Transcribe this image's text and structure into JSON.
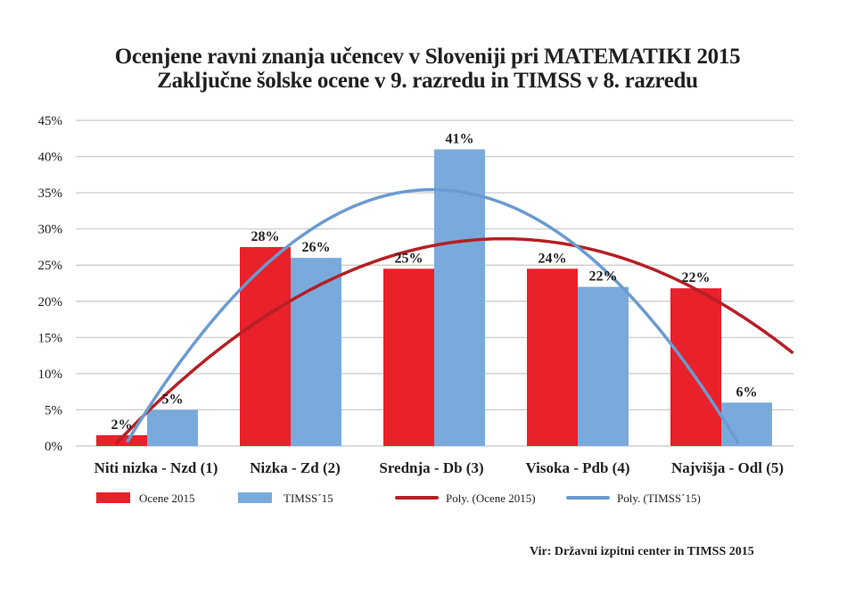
{
  "chart_data": {
    "type": "bar",
    "title": "Ocenjene ravni znanja učencev v Sloveniji pri MATEMATIKI 2015",
    "subtitle": "Zaključne šolske ocene v 9. razredu in TIMSS v 8. razredu",
    "categories": [
      "Niti nizka - Nzd (1)",
      "Nizka - Zd (2)",
      "Srednja - Db (3)",
      "Visoka - Pdb (4)",
      "Najvišja - Odl (5)"
    ],
    "series": [
      {
        "name": "Ocene 2015",
        "values": [
          1.5,
          27.5,
          24.5,
          24.5,
          21.8
        ],
        "labels": [
          "2%",
          "28%",
          "25%",
          "24%",
          "22%"
        ],
        "color": "#e8212b"
      },
      {
        "name": "TIMSS´15",
        "values": [
          5,
          26,
          41,
          22,
          6
        ],
        "labels": [
          "5%",
          "26%",
          "41%",
          "22%",
          "6%"
        ],
        "color": "#7aaadb"
      }
    ],
    "trendlines": [
      {
        "name": "Poly. (Ocene 2015)",
        "of": "Ocene 2015",
        "order": 2,
        "color": "#b52025"
      },
      {
        "name": "Poly. (TIMSS´15)",
        "of": "TIMSS´15",
        "order": 2,
        "color": "#6b9bd0"
      }
    ],
    "ylim": [
      0,
      45
    ],
    "yticks": [
      "0%",
      "5%",
      "10%",
      "15%",
      "20%",
      "25%",
      "30%",
      "35%",
      "40%",
      "45%"
    ],
    "ytick_values": [
      0,
      5,
      10,
      15,
      20,
      25,
      30,
      35,
      40,
      45
    ],
    "xlabel": "",
    "ylabel": "",
    "grid": true,
    "legend_position": "bottom",
    "gridline_color": "#c8c8c8"
  },
  "source": "Vir: Državni izpitni center in TIMSS 2015"
}
